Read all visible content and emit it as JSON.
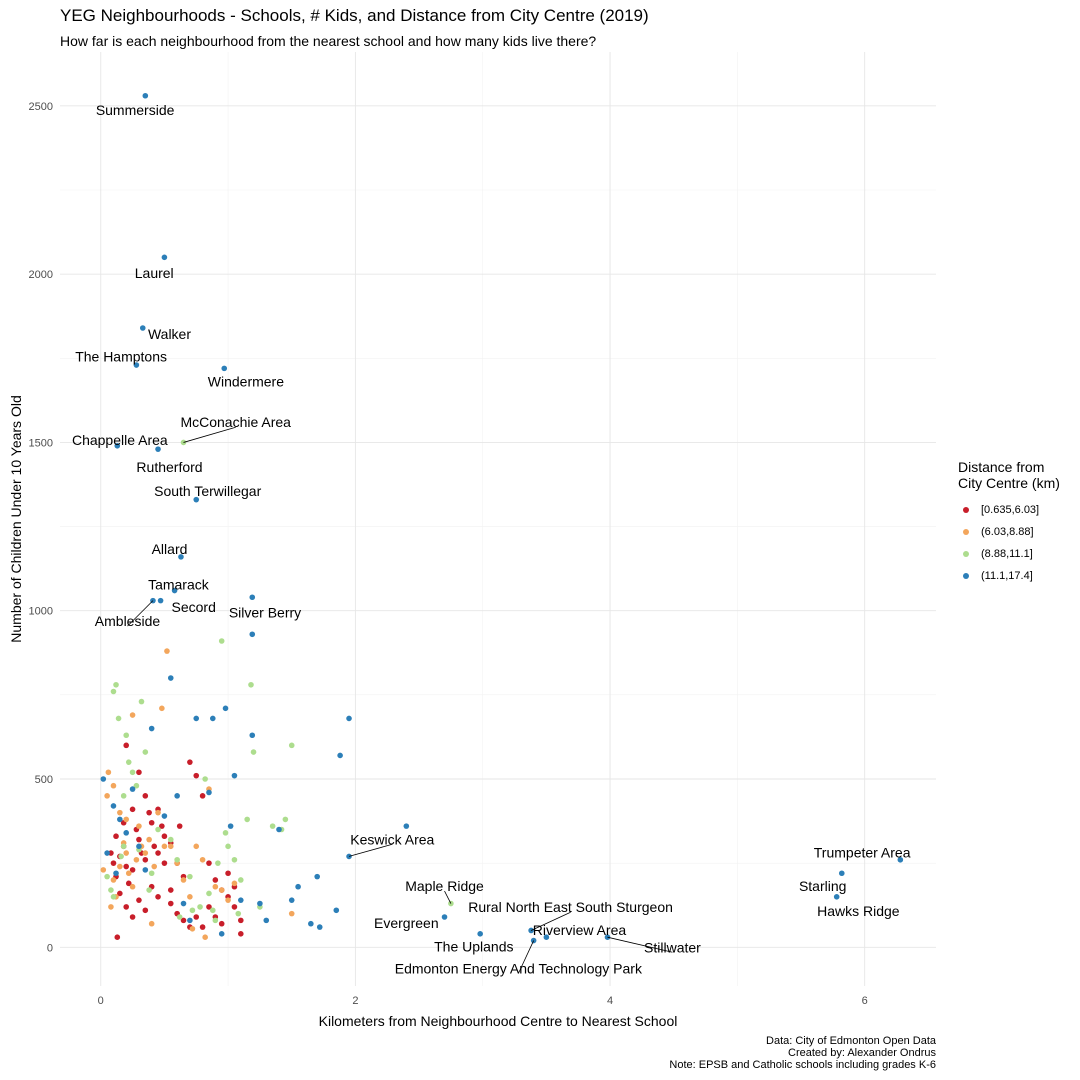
{
  "title": "YEG Neighbourhoods - Schools, # Kids, and Distance from City Centre (2019)",
  "subtitle": "How far is each neighbourhood from the nearest school and how many kids live there?",
  "caption": [
    "Data: City of Edmonton Open Data",
    "Created by: Alexander Ondrus",
    "Note: EPSB and Catholic schools including grades K-6"
  ],
  "legend": {
    "title_lines": [
      "Distance from",
      "City Centre (km)"
    ],
    "items": [
      {
        "label": "[0.635,6.03]",
        "color": "#c81e2a"
      },
      {
        "label": "(6.03,8.88]",
        "color": "#f3a65c"
      },
      {
        "label": "(8.88,11.1]",
        "color": "#addd8e"
      },
      {
        "label": "(11.1,17.4]",
        "color": "#2c7fb8"
      }
    ]
  },
  "chart_data": {
    "type": "scatter",
    "xlabel": "Kilometers from Neighbourhood Centre to Nearest School",
    "ylabel": "Number of Children Under 10 Years Old",
    "xlim": [
      -0.32,
      6.56
    ],
    "ylim": [
      -115,
      2660
    ],
    "x_ticks": [
      0,
      2,
      4,
      6
    ],
    "y_ticks": [
      0,
      500,
      1000,
      1500,
      2000,
      2500
    ],
    "grid": true,
    "legend_position": "right",
    "series": [
      {
        "name": "[0.635,6.03]",
        "color_index": 0,
        "points": [
          [
            0.08,
            280
          ],
          [
            0.1,
            250
          ],
          [
            0.12,
            210
          ],
          [
            0.15,
            270
          ],
          [
            0.18,
            300
          ],
          [
            0.2,
            240
          ],
          [
            0.22,
            190
          ],
          [
            0.25,
            230
          ],
          [
            0.28,
            350
          ],
          [
            0.3,
            320
          ],
          [
            0.32,
            280
          ],
          [
            0.35,
            260
          ],
          [
            0.38,
            400
          ],
          [
            0.4,
            370
          ],
          [
            0.42,
            300
          ],
          [
            0.45,
            280
          ],
          [
            0.48,
            360
          ],
          [
            0.5,
            330
          ],
          [
            0.55,
            310
          ],
          [
            0.6,
            250
          ],
          [
            0.65,
            210
          ],
          [
            0.7,
            550
          ],
          [
            0.75,
            510
          ],
          [
            0.8,
            450
          ],
          [
            0.85,
            250
          ],
          [
            0.9,
            200
          ],
          [
            0.95,
            170
          ],
          [
            1.0,
            150
          ],
          [
            1.05,
            120
          ],
          [
            1.1,
            80
          ],
          [
            0.15,
            160
          ],
          [
            0.2,
            120
          ],
          [
            0.25,
            90
          ],
          [
            0.3,
            140
          ],
          [
            0.35,
            110
          ],
          [
            0.4,
            180
          ],
          [
            0.45,
            150
          ],
          [
            0.55,
            130
          ],
          [
            0.6,
            100
          ],
          [
            0.65,
            80
          ],
          [
            0.7,
            60
          ],
          [
            0.75,
            90
          ],
          [
            0.8,
            60
          ],
          [
            0.85,
            120
          ],
          [
            0.9,
            90
          ],
          [
            0.95,
            70
          ],
          [
            1.05,
            180
          ],
          [
            1.1,
            40
          ],
          [
            0.13,
            30
          ],
          [
            0.2,
            600
          ],
          [
            0.3,
            520
          ],
          [
            0.25,
            410
          ],
          [
            0.35,
            450
          ],
          [
            0.45,
            410
          ],
          [
            0.5,
            250
          ],
          [
            0.55,
            170
          ],
          [
            1.0,
            220
          ],
          [
            0.62,
            360
          ],
          [
            0.18,
            370
          ],
          [
            0.12,
            330
          ]
        ]
      },
      {
        "name": "(6.03,8.88]",
        "color_index": 1,
        "points": [
          [
            0.02,
            230
          ],
          [
            0.05,
            450
          ],
          [
            0.06,
            520
          ],
          [
            0.08,
            120
          ],
          [
            0.1,
            480
          ],
          [
            0.12,
            150
          ],
          [
            0.15,
            400
          ],
          [
            0.18,
            310
          ],
          [
            0.2,
            280
          ],
          [
            0.22,
            220
          ],
          [
            0.25,
            180
          ],
          [
            0.28,
            260
          ],
          [
            0.3,
            360
          ],
          [
            0.32,
            300
          ],
          [
            0.35,
            280
          ],
          [
            0.38,
            320
          ],
          [
            0.4,
            70
          ],
          [
            0.42,
            240
          ],
          [
            0.45,
            400
          ],
          [
            0.48,
            710
          ],
          [
            0.5,
            300
          ],
          [
            0.52,
            880
          ],
          [
            0.55,
            300
          ],
          [
            0.6,
            250
          ],
          [
            0.65,
            200
          ],
          [
            0.7,
            150
          ],
          [
            0.72,
            55
          ],
          [
            0.75,
            300
          ],
          [
            0.8,
            260
          ],
          [
            0.82,
            30
          ],
          [
            0.85,
            470
          ],
          [
            0.9,
            180
          ],
          [
            0.95,
            170
          ],
          [
            1.0,
            140
          ],
          [
            1.05,
            190
          ],
          [
            1.5,
            100
          ],
          [
            0.25,
            690
          ],
          [
            0.1,
            200
          ],
          [
            0.15,
            240
          ],
          [
            0.2,
            380
          ]
        ]
      },
      {
        "name": "(8.88,11.1]",
        "color_index": 2,
        "points": [
          [
            0.05,
            210
          ],
          [
            0.08,
            170
          ],
          [
            0.1,
            150
          ],
          [
            0.12,
            780
          ],
          [
            0.14,
            680
          ],
          [
            0.16,
            270
          ],
          [
            0.18,
            300
          ],
          [
            0.2,
            630
          ],
          [
            0.22,
            550
          ],
          [
            0.25,
            520
          ],
          [
            0.28,
            480
          ],
          [
            0.3,
            290
          ],
          [
            0.32,
            730
          ],
          [
            0.35,
            580
          ],
          [
            0.38,
            170
          ],
          [
            0.4,
            220
          ],
          [
            0.45,
            350
          ],
          [
            0.55,
            320
          ],
          [
            0.6,
            260
          ],
          [
            0.65,
            1500
          ],
          [
            0.7,
            210
          ],
          [
            0.72,
            110
          ],
          [
            0.78,
            120
          ],
          [
            0.82,
            500
          ],
          [
            0.85,
            160
          ],
          [
            0.9,
            80
          ],
          [
            0.92,
            250
          ],
          [
            0.95,
            910
          ],
          [
            0.98,
            340
          ],
          [
            1.0,
            300
          ],
          [
            1.05,
            260
          ],
          [
            1.1,
            200
          ],
          [
            1.15,
            380
          ],
          [
            1.18,
            780
          ],
          [
            1.2,
            580
          ],
          [
            1.35,
            360
          ],
          [
            1.42,
            350
          ],
          [
            1.45,
            380
          ],
          [
            1.5,
            600
          ],
          [
            2.75,
            130
          ],
          [
            0.62,
            90
          ],
          [
            0.88,
            110
          ],
          [
            1.08,
            100
          ],
          [
            1.25,
            120
          ],
          [
            0.1,
            760
          ],
          [
            0.18,
            450
          ]
        ]
      },
      {
        "name": "(11.1,17.4]",
        "color_index": 3,
        "points": [
          [
            0.35,
            2530
          ],
          [
            0.5,
            2050
          ],
          [
            0.33,
            1840
          ],
          [
            0.97,
            1720
          ],
          [
            0.28,
            1730
          ],
          [
            0.13,
            1490
          ],
          [
            0.45,
            1480
          ],
          [
            0.75,
            1330
          ],
          [
            0.63,
            1160
          ],
          [
            0.58,
            1060
          ],
          [
            0.41,
            1030
          ],
          [
            0.47,
            1030
          ],
          [
            1.19,
            1040
          ],
          [
            1.19,
            930
          ],
          [
            0.02,
            500
          ],
          [
            0.1,
            420
          ],
          [
            0.15,
            380
          ],
          [
            0.2,
            340
          ],
          [
            0.25,
            470
          ],
          [
            0.3,
            300
          ],
          [
            0.35,
            230
          ],
          [
            0.4,
            650
          ],
          [
            0.5,
            390
          ],
          [
            0.55,
            800
          ],
          [
            0.6,
            450
          ],
          [
            0.65,
            130
          ],
          [
            0.7,
            80
          ],
          [
            0.75,
            680
          ],
          [
            0.85,
            460
          ],
          [
            0.88,
            680
          ],
          [
            0.95,
            40
          ],
          [
            0.98,
            710
          ],
          [
            1.02,
            360
          ],
          [
            1.05,
            510
          ],
          [
            1.1,
            140
          ],
          [
            1.19,
            630
          ],
          [
            1.25,
            130
          ],
          [
            1.3,
            80
          ],
          [
            1.4,
            350
          ],
          [
            1.5,
            140
          ],
          [
            1.55,
            180
          ],
          [
            1.65,
            70
          ],
          [
            1.7,
            210
          ],
          [
            1.72,
            60
          ],
          [
            1.85,
            110
          ],
          [
            1.88,
            570
          ],
          [
            1.95,
            680
          ],
          [
            1.95,
            270
          ],
          [
            2.4,
            360
          ],
          [
            2.7,
            90
          ],
          [
            2.98,
            40
          ],
          [
            3.38,
            50
          ],
          [
            3.4,
            20
          ],
          [
            3.5,
            30
          ],
          [
            3.98,
            30
          ],
          [
            5.78,
            150
          ],
          [
            5.82,
            220
          ],
          [
            6.28,
            260
          ],
          [
            0.05,
            280
          ],
          [
            0.12,
            220
          ]
        ]
      }
    ],
    "labels": [
      {
        "text": "Summerside",
        "x": 0.35,
        "y": 2530,
        "tx": 0.27,
        "ty": 2488
      },
      {
        "text": "Laurel",
        "x": 0.5,
        "y": 2050,
        "tx": 0.42,
        "ty": 2004
      },
      {
        "text": "Walker",
        "x": 0.33,
        "y": 1840,
        "tx": 0.54,
        "ty": 1822
      },
      {
        "text": "The Hamptons",
        "x": 0.28,
        "y": 1730,
        "tx": 0.16,
        "ty": 1755
      },
      {
        "text": "Windermere",
        "x": 0.97,
        "y": 1720,
        "tx": 1.14,
        "ty": 1681
      },
      {
        "text": "McConachie Area",
        "x": 0.65,
        "y": 1500,
        "tx": 1.06,
        "ty": 1560,
        "segment": true
      },
      {
        "text": "Chappelle Area",
        "x": 0.13,
        "y": 1490,
        "tx": 0.15,
        "ty": 1507
      },
      {
        "text": "Rutherford",
        "x": 0.45,
        "y": 1480,
        "tx": 0.54,
        "ty": 1427
      },
      {
        "text": "South Terwillegar",
        "x": 0.75,
        "y": 1330,
        "tx": 0.84,
        "ty": 1356
      },
      {
        "text": "Allard",
        "x": 0.63,
        "y": 1160,
        "tx": 0.54,
        "ty": 1184
      },
      {
        "text": "Tamarack",
        "x": 0.58,
        "y": 1060,
        "tx": 0.61,
        "ty": 1078
      },
      {
        "text": "Secord",
        "x": 0.47,
        "y": 1030,
        "tx": 0.73,
        "ty": 1011
      },
      {
        "text": "Ambleside",
        "x": 0.41,
        "y": 1030,
        "tx": 0.21,
        "ty": 969,
        "segment": true
      },
      {
        "text": "Silver Berry",
        "x": 1.19,
        "y": 1040,
        "tx": 1.29,
        "ty": 995
      },
      {
        "text": "Keswick Area",
        "x": 1.95,
        "y": 270,
        "tx": 2.29,
        "ty": 321,
        "segment": true
      },
      {
        "text": "Trumpeter Area",
        "x": 6.28,
        "y": 260,
        "tx": 5.98,
        "ty": 282
      },
      {
        "text": "Starling",
        "x": 5.82,
        "y": 220,
        "tx": 5.67,
        "ty": 182
      },
      {
        "text": "Hawks Ridge",
        "x": 5.78,
        "y": 150,
        "tx": 5.95,
        "ty": 108
      },
      {
        "text": "Maple Ridge",
        "x": 2.75,
        "y": 130,
        "tx": 2.7,
        "ty": 182,
        "segment": true
      },
      {
        "text": "Rural North East South Sturgeon",
        "x": 3.38,
        "y": 50,
        "tx": 3.69,
        "ty": 119,
        "segment": true
      },
      {
        "text": "Evergreen",
        "x": 2.7,
        "y": 90,
        "tx": 2.4,
        "ty": 72
      },
      {
        "text": "Riverview Area",
        "x": 3.5,
        "y": 30,
        "tx": 3.76,
        "ty": 52
      },
      {
        "text": "Stillwater",
        "x": 3.98,
        "y": 30,
        "tx": 4.49,
        "ty": 0,
        "segment": true
      },
      {
        "text": "The Uplands",
        "x": 2.98,
        "y": 40,
        "tx": 2.93,
        "ty": 2
      },
      {
        "text": "Edmonton Energy And Technology Park",
        "x": 3.4,
        "y": 20,
        "tx": 3.28,
        "ty": -63,
        "segment": true
      }
    ]
  }
}
